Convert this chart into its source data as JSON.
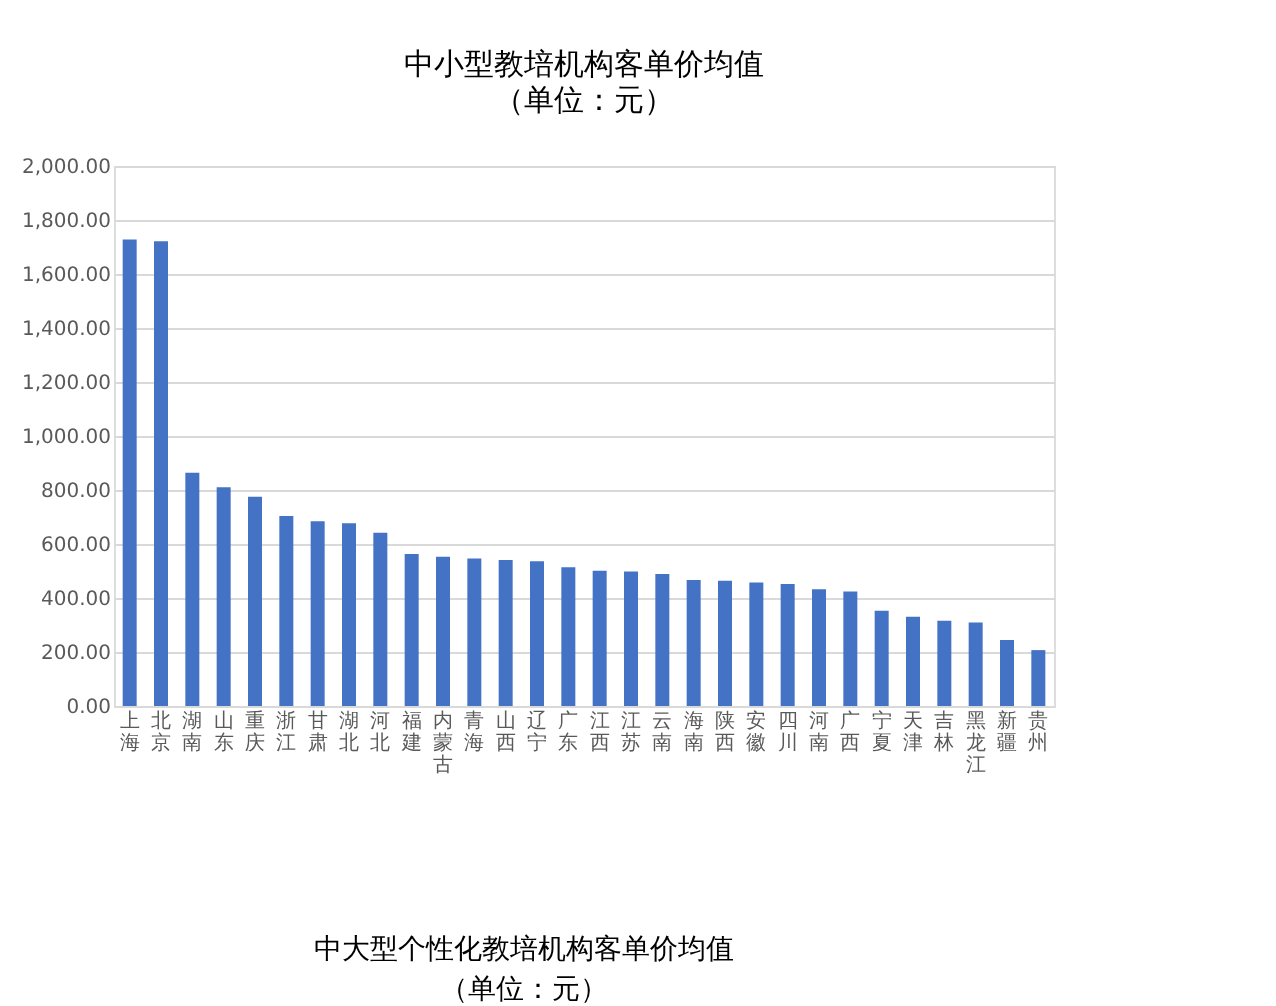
{
  "chart_data": {
    "type": "bar",
    "title": "中小型教培机构客单价均值",
    "subtitle": "（单位：元）",
    "categories": [
      "上海",
      "北京",
      "湖南",
      "山东",
      "重庆",
      "浙江",
      "甘肃",
      "湖北",
      "河北",
      "福建",
      "内蒙古",
      "青海",
      "山西",
      "辽宁",
      "广东",
      "江西",
      "江苏",
      "云南",
      "海南",
      "陕西",
      "安徽",
      "四川",
      "河南",
      "广西",
      "宁夏",
      "天津",
      "吉林",
      "黑龙江",
      "新疆",
      "贵州"
    ],
    "values": [
      1728,
      1721,
      864,
      810,
      775,
      704,
      684,
      677,
      642,
      563,
      553,
      546,
      541,
      536,
      514,
      501,
      498,
      489,
      467,
      464,
      457,
      452,
      432,
      424,
      353,
      331,
      316,
      309,
      244,
      207
    ],
    "color": "#4472c4",
    "ylim": [
      0,
      2000
    ],
    "yticks": [
      {
        "value": 0,
        "label": "0.00"
      },
      {
        "value": 200,
        "label": "200.00"
      },
      {
        "value": 400,
        "label": "400.00"
      },
      {
        "value": 600,
        "label": "600.00"
      },
      {
        "value": 800,
        "label": "800.00"
      },
      {
        "value": 1000,
        "label": "1,000.00"
      },
      {
        "value": 1200,
        "label": "1,200.00"
      },
      {
        "value": 1400,
        "label": "1,400.00"
      },
      {
        "value": 1600,
        "label": "1,600.00"
      },
      {
        "value": 1800,
        "label": "1,800.00"
      },
      {
        "value": 2000,
        "label": "2,000.00"
      }
    ],
    "grid": "y",
    "annotations": [
      "中大型个性化教培机构客单价均值",
      "（单位：元）"
    ]
  }
}
